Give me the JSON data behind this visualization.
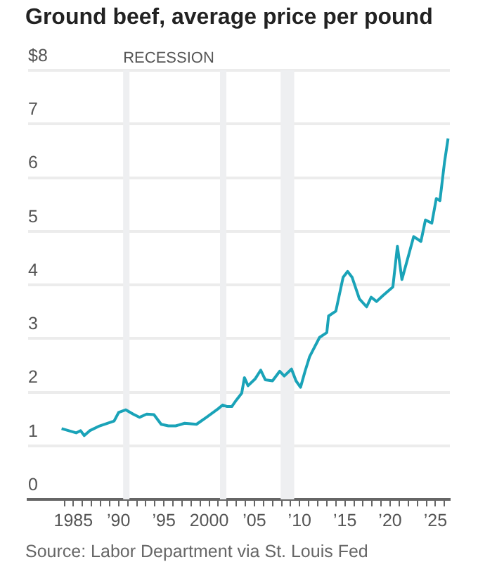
{
  "chart_data": {
    "type": "line",
    "title": "Ground beef, average price per pound",
    "x": [
      1983.7,
      1984.5,
      1985.3,
      1985.8,
      1986.2,
      1986.8,
      1987.9,
      1989.5,
      1990.0,
      1990.8,
      1991.6,
      1992.3,
      1993.1,
      1993.9,
      1994.7,
      1995.5,
      1996.3,
      1997.3,
      1998.6,
      1999.7,
      2001.0,
      2001.5,
      2002.0,
      2002.5,
      2003.0,
      2003.6,
      2003.9,
      2004.3,
      2005.1,
      2005.7,
      2006.2,
      2007.0,
      2007.8,
      2008.3,
      2009.1,
      2009.6,
      2010.1,
      2010.6,
      2011.1,
      2012.2,
      2013.0,
      2013.2,
      2014.0,
      2014.8,
      2015.3,
      2015.8,
      2016.6,
      2017.4,
      2017.9,
      2018.5,
      2019.2,
      2020.3,
      2020.8,
      2021.3,
      2022.1,
      2022.6,
      2023.4,
      2023.9,
      2024.6,
      2025.1,
      2025.5,
      2026.0,
      2026.4
    ],
    "series": [
      {
        "color": "#1aa3b8",
        "values": [
          1.32,
          1.28,
          1.24,
          1.28,
          1.19,
          1.28,
          1.37,
          1.46,
          1.62,
          1.67,
          1.59,
          1.53,
          1.59,
          1.58,
          1.4,
          1.37,
          1.37,
          1.42,
          1.4,
          1.53,
          1.69,
          1.76,
          1.73,
          1.73,
          1.85,
          1.98,
          2.27,
          2.12,
          2.25,
          2.41,
          2.23,
          2.21,
          2.39,
          2.3,
          2.43,
          2.21,
          2.09,
          2.39,
          2.66,
          3.02,
          3.11,
          3.42,
          3.51,
          4.14,
          4.25,
          4.14,
          3.74,
          3.59,
          3.77,
          3.69,
          3.8,
          3.96,
          4.72,
          4.1,
          4.59,
          4.9,
          4.81,
          5.21,
          5.15,
          5.61,
          5.57,
          6.28,
          6.73
        ]
      }
    ],
    "xlim": [
      1980,
      2026.6
    ],
    "xticks": [
      {
        "value": 1984,
        "label": null
      },
      {
        "value": 1985,
        "label": "1985"
      },
      {
        "value": 1986,
        "label": null
      },
      {
        "value": 1987,
        "label": null
      },
      {
        "value": 1988,
        "label": null
      },
      {
        "value": 1989,
        "label": null
      },
      {
        "value": 1990,
        "label": "’90"
      },
      {
        "value": 1991,
        "label": null
      },
      {
        "value": 1992,
        "label": null
      },
      {
        "value": 1993,
        "label": null
      },
      {
        "value": 1994,
        "label": null
      },
      {
        "value": 1995,
        "label": "’95"
      },
      {
        "value": 1996,
        "label": null
      },
      {
        "value": 1997,
        "label": null
      },
      {
        "value": 1998,
        "label": null
      },
      {
        "value": 1999,
        "label": null
      },
      {
        "value": 2000,
        "label": "2000"
      },
      {
        "value": 2001,
        "label": null
      },
      {
        "value": 2002,
        "label": null
      },
      {
        "value": 2003,
        "label": null
      },
      {
        "value": 2004,
        "label": null
      },
      {
        "value": 2005,
        "label": "’05"
      },
      {
        "value": 2006,
        "label": null
      },
      {
        "value": 2007,
        "label": null
      },
      {
        "value": 2008,
        "label": null
      },
      {
        "value": 2009,
        "label": null
      },
      {
        "value": 2010,
        "label": "’10"
      },
      {
        "value": 2011,
        "label": null
      },
      {
        "value": 2012,
        "label": null
      },
      {
        "value": 2013,
        "label": null
      },
      {
        "value": 2014,
        "label": null
      },
      {
        "value": 2015,
        "label": "’15"
      },
      {
        "value": 2016,
        "label": null
      },
      {
        "value": 2017,
        "label": null
      },
      {
        "value": 2018,
        "label": null
      },
      {
        "value": 2019,
        "label": null
      },
      {
        "value": 2020,
        "label": "’20"
      },
      {
        "value": 2021,
        "label": null
      },
      {
        "value": 2022,
        "label": null
      },
      {
        "value": 2023,
        "label": null
      },
      {
        "value": 2024,
        "label": null
      },
      {
        "value": 2025,
        "label": "’25"
      },
      {
        "value": 2026,
        "label": null
      }
    ],
    "ylim": [
      0,
      8
    ],
    "yticks": [
      0,
      1,
      2,
      3,
      4,
      5,
      6,
      7,
      {
        "value": 8,
        "label": "$8"
      }
    ],
    "grid": "y",
    "marker": "none",
    "bands": [
      {
        "axis": "x",
        "from": 1990.5,
        "to": 1991.2,
        "label": "RECESSION",
        "color": "#eeeff1"
      },
      {
        "axis": "x",
        "from": 2001.2,
        "to": 2001.9,
        "color": "#eeeff1"
      },
      {
        "axis": "x",
        "from": 2007.9,
        "to": 2009.4,
        "color": "#eeeff1"
      }
    ],
    "annotations": [
      "Source: Labor Department via St. Louis Fed"
    ]
  }
}
